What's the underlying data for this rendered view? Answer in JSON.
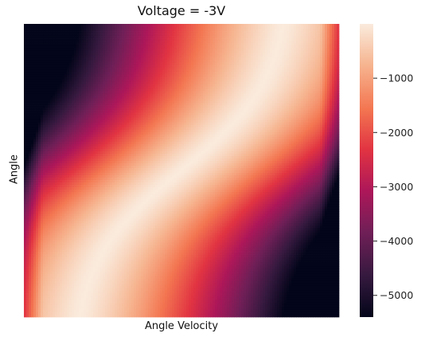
{
  "chart_data": {
    "type": "heatmap",
    "title": "Voltage = -3V",
    "xlabel": "Angle Velocity",
    "ylabel": "Angle",
    "colormap": "rocket",
    "colorbar": {
      "vmin": -5400,
      "vmax": 0,
      "ticks": [
        -1000,
        -2000,
        -3000,
        -4000,
        -5000
      ],
      "tick_labels": [
        "−1000",
        "−2000",
        "−3000",
        "−4000",
        "−5000"
      ]
    },
    "field_description": {
      "max_value": 0,
      "min_value": -5400,
      "ridge": "bright diagonal band from bottom-left toward top-right where value is near 0",
      "low_regions": "darkest values at the left and right edges"
    }
  },
  "colors": {
    "cmap_stops": [
      "#03051a",
      "#35193e",
      "#701f57",
      "#ad1759",
      "#e13342",
      "#f37651",
      "#f6b48f",
      "#faebdd"
    ]
  }
}
